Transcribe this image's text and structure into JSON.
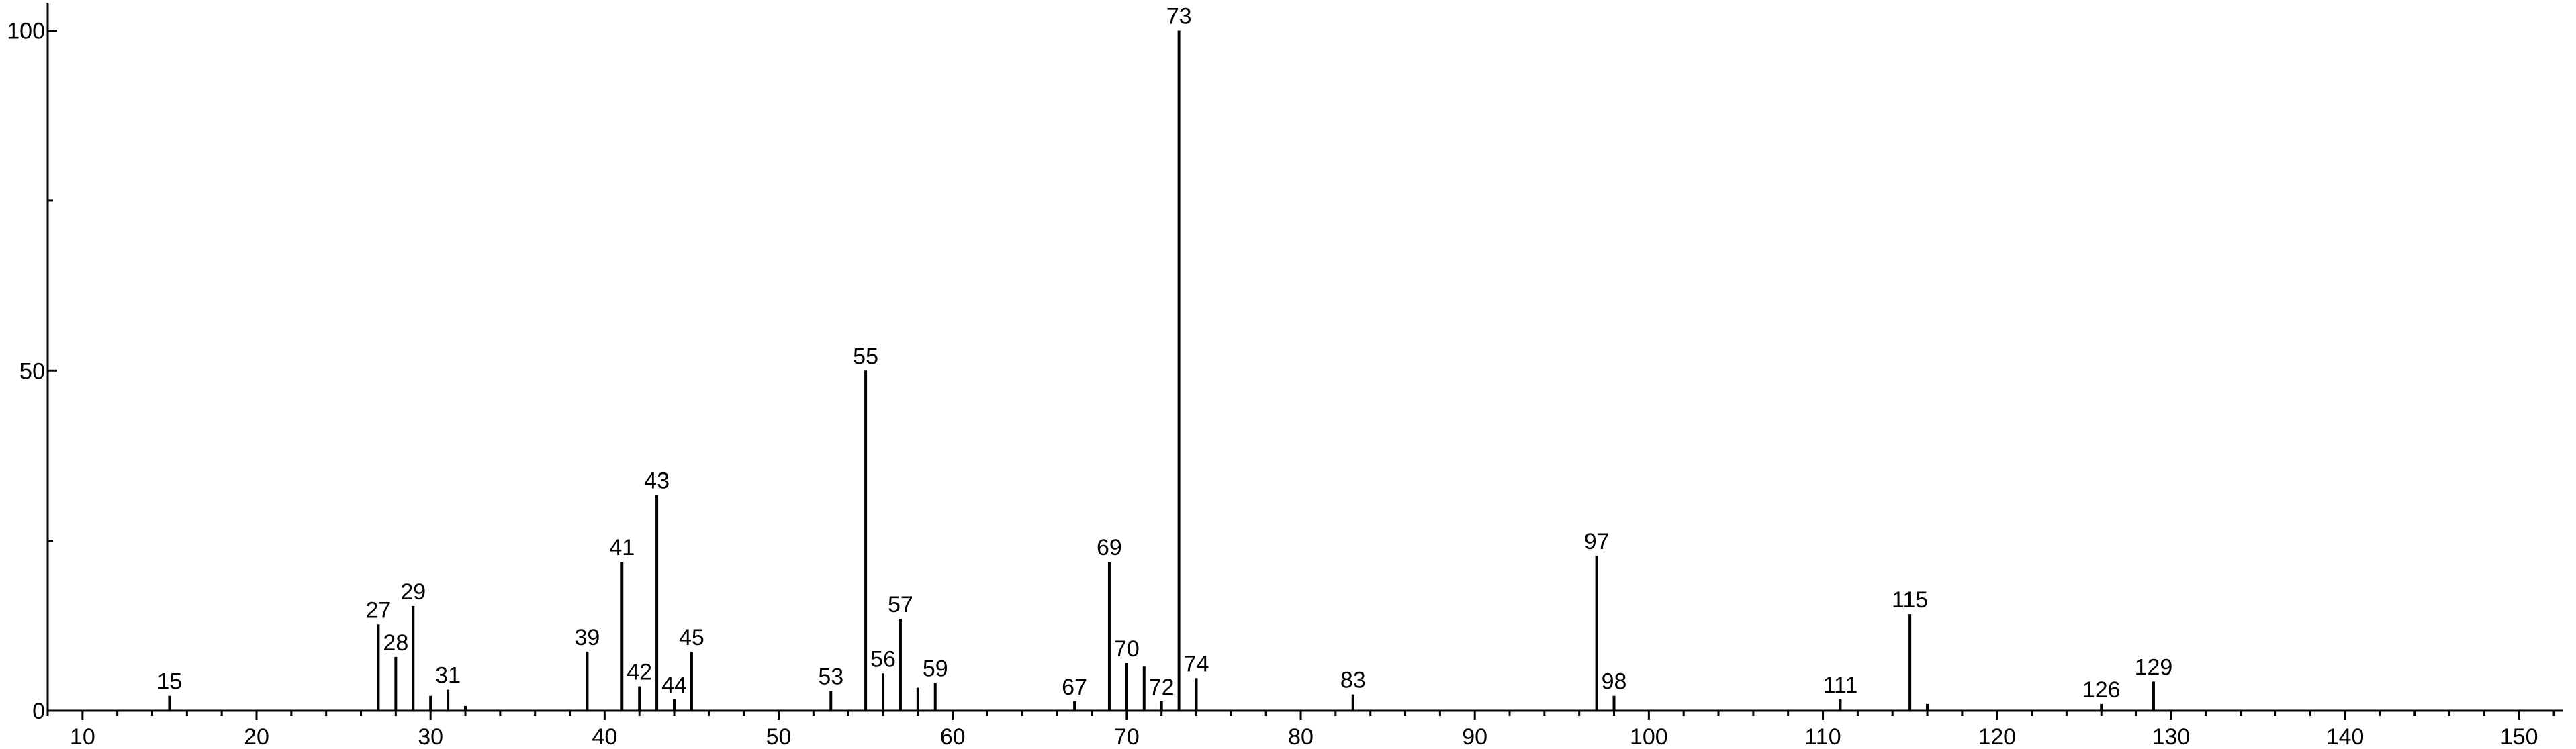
{
  "chart_data": {
    "type": "stem",
    "series": [
      {
        "color": "#000000",
        "show_labels": true,
        "x": [
          15,
          27,
          28,
          29,
          31,
          39,
          41,
          42,
          43,
          44,
          45,
          53,
          55,
          56,
          57,
          59,
          67,
          69,
          70,
          72,
          73,
          74,
          83,
          97,
          98,
          111,
          115,
          126,
          129
        ],
        "values": [
          2.2,
          12.7,
          7.9,
          15.4,
          3.1,
          8.7,
          21.9,
          3.6,
          31.7,
          1.7,
          8.7,
          2.9,
          50.0,
          5.5,
          13.5,
          4.1,
          1.4,
          21.9,
          7.0,
          1.4,
          100,
          4.8,
          2.4,
          22.8,
          2.2,
          1.7,
          14.2,
          1.0,
          4.3
        ]
      },
      {
        "color": "#000000",
        "show_labels": false,
        "x": [
          30,
          32,
          58,
          71,
          116
        ],
        "values": [
          2.2,
          0.7,
          3.4,
          6.5,
          1.0
        ]
      }
    ],
    "xlim": [
      8,
      152.5
    ],
    "ylim": [
      0,
      104
    ],
    "xticks": [
      10,
      20,
      30,
      40,
      50,
      60,
      70,
      80,
      90,
      100,
      110,
      120,
      130,
      140,
      150
    ],
    "xminorticks": [
      8,
      12,
      14,
      16,
      18,
      22,
      24,
      26,
      28,
      32,
      34,
      36,
      38,
      42,
      44,
      46,
      48,
      52,
      54,
      56,
      58,
      62,
      64,
      66,
      68,
      72,
      74,
      76,
      78,
      82,
      84,
      86,
      88,
      92,
      94,
      96,
      98,
      102,
      104,
      106,
      108,
      112,
      114,
      116,
      118,
      122,
      124,
      126,
      128,
      132,
      134,
      136,
      138,
      142,
      144,
      146,
      148,
      152
    ],
    "yticks": [
      0,
      50,
      100
    ],
    "yminorticks": [
      25,
      75
    ]
  }
}
